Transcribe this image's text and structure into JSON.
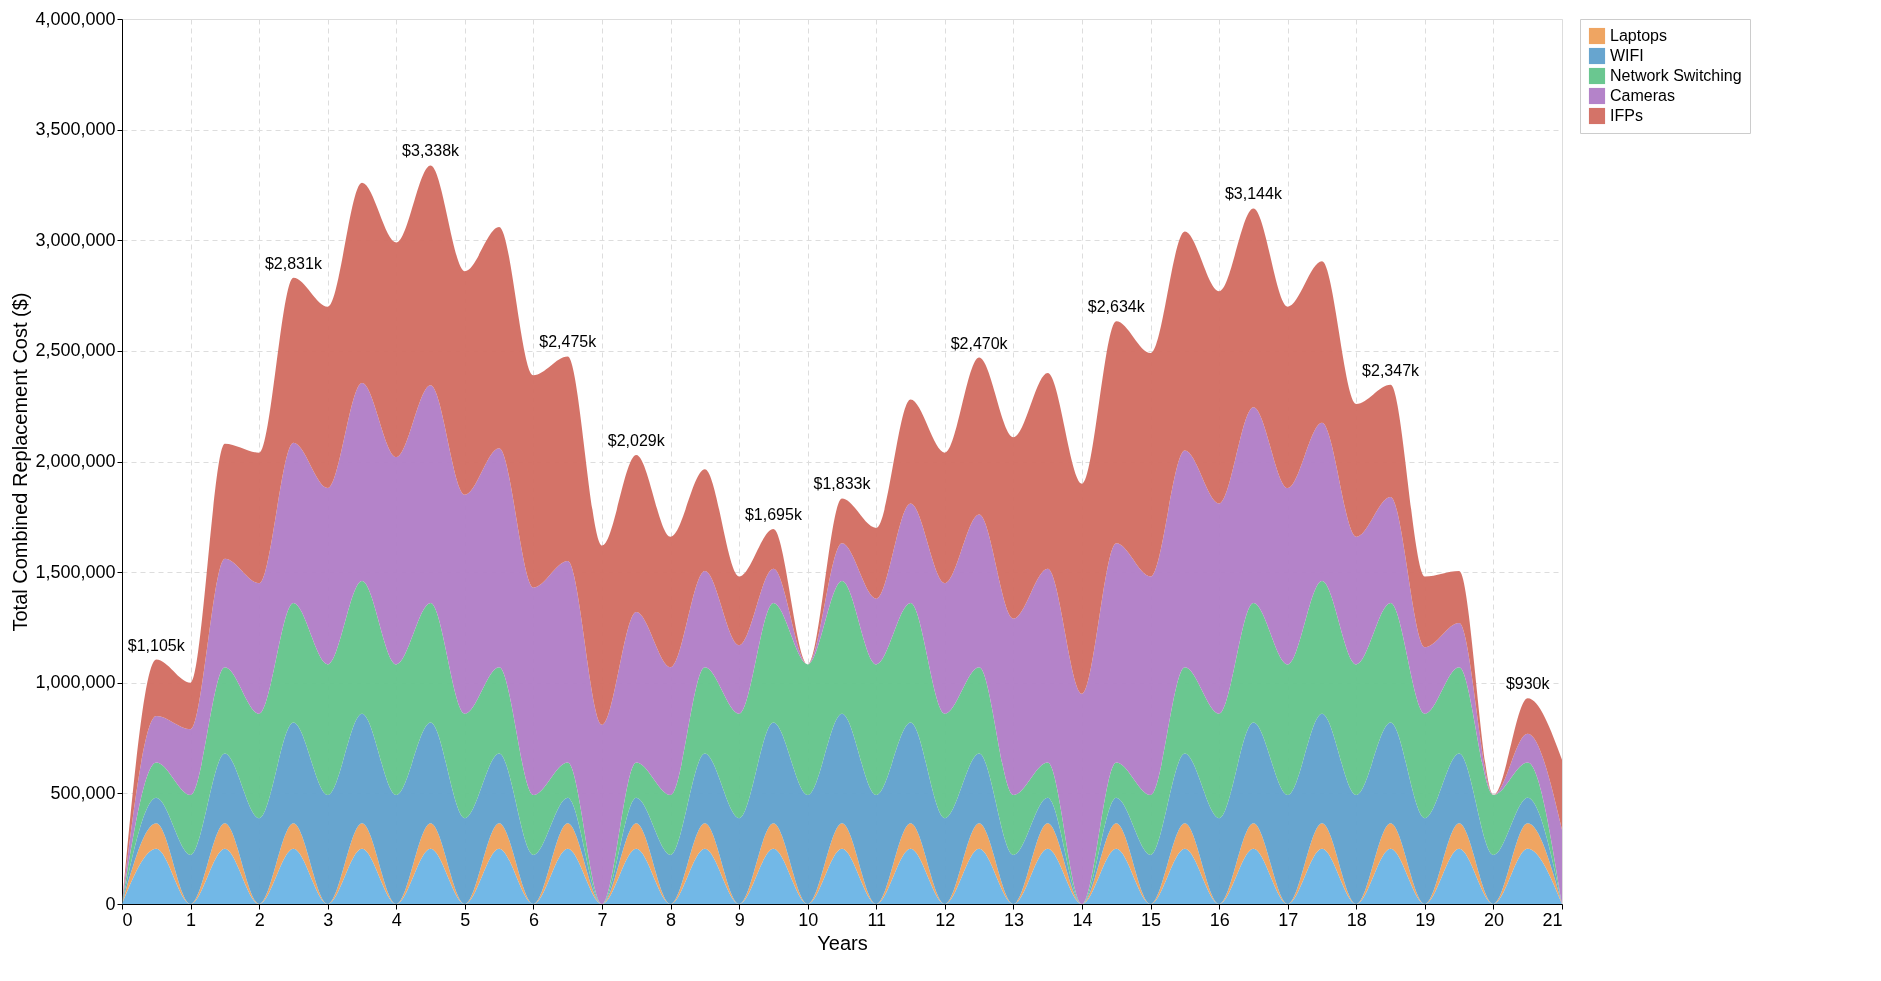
{
  "chart_data": {
    "type": "area",
    "stacked": true,
    "xlabel": "Years",
    "ylabel": "Total Combined Replacement Cost ($)",
    "x": [
      0,
      0.5,
      1,
      1.5,
      2,
      2.5,
      3,
      3.5,
      4,
      4.5,
      5,
      5.5,
      6,
      6.5,
      7,
      7.5,
      8,
      8.5,
      9,
      9.5,
      10,
      10.5,
      11,
      11.5,
      12,
      12.5,
      13,
      13.5,
      14,
      14.5,
      15,
      15.5,
      16,
      16.5,
      17,
      17.5,
      18,
      18.5,
      19,
      19.5,
      20,
      20.5,
      21
    ],
    "series": [
      {
        "color": "#6ab4e6",
        "values": [
          0,
          250000,
          0,
          250000,
          0,
          250000,
          0,
          250000,
          0,
          250000,
          0,
          250000,
          0,
          250000,
          0,
          250000,
          0,
          250000,
          0,
          250000,
          0,
          250000,
          0,
          250000,
          0,
          250000,
          0,
          250000,
          0,
          250000,
          0,
          250000,
          0,
          250000,
          0,
          250000,
          0,
          250000,
          0,
          250000,
          0,
          250000,
          0
        ]
      },
      {
        "name": "Laptops",
        "color": "#eea05a",
        "values": [
          0,
          115000,
          0,
          115000,
          0,
          115000,
          0,
          115000,
          0,
          115000,
          0,
          115000,
          0,
          115000,
          0,
          115000,
          0,
          115000,
          0,
          115000,
          0,
          115000,
          0,
          115000,
          0,
          115000,
          0,
          115000,
          0,
          115000,
          0,
          115000,
          0,
          115000,
          0,
          115000,
          0,
          115000,
          0,
          115000,
          0,
          115000,
          0
        ]
      },
      {
        "name": "WIFI",
        "color": "#5fa0cc",
        "values": [
          0,
          115000,
          222000,
          315000,
          388000,
          455000,
          493000,
          495000,
          493000,
          455000,
          388000,
          315000,
          222000,
          115000,
          0,
          115000,
          222000,
          315000,
          388000,
          455000,
          493000,
          495000,
          493000,
          455000,
          388000,
          315000,
          222000,
          115000,
          0,
          115000,
          222000,
          315000,
          388000,
          455000,
          493000,
          495000,
          493000,
          455000,
          388000,
          315000,
          222000,
          115000,
          0
        ]
      },
      {
        "name": "Network Switching",
        "color": "#62c48a",
        "values": [
          0,
          160000,
          271000,
          390000,
          472000,
          540000,
          590000,
          600000,
          590000,
          540000,
          472000,
          390000,
          271000,
          160000,
          0,
          160000,
          271000,
          390000,
          472000,
          540000,
          590000,
          600000,
          590000,
          540000,
          472000,
          390000,
          271000,
          160000,
          0,
          160000,
          271000,
          390000,
          472000,
          540000,
          590000,
          600000,
          590000,
          540000,
          472000,
          390000,
          271000,
          160000,
          0
        ]
      },
      {
        "name": "Cameras",
        "color": "#b07cc6",
        "values": [
          0,
          210000,
          297000,
          490000,
          590000,
          725000,
          797000,
          895000,
          937000,
          985000,
          990000,
          990000,
          937000,
          910000,
          810000,
          680000,
          577000,
          435000,
          310000,
          155000,
          0,
          170000,
          297000,
          450000,
          590000,
          690000,
          797000,
          875000,
          950000,
          990000,
          987000,
          980000,
          950000,
          885000,
          797000,
          715000,
          577000,
          480000,
          300000,
          200000,
          0,
          130000,
          336000
        ]
      },
      {
        "name": "IFPs",
        "color": "#d26c60",
        "values": [
          0,
          255000,
          210000,
          520000,
          590000,
          746000,
          820000,
          905000,
          970000,
          993000,
          1010000,
          1000000,
          960000,
          925000,
          810000,
          709000,
          590000,
          460000,
          310000,
          180000,
          0,
          203000,
          320000,
          470000,
          590000,
          710000,
          820000,
          885000,
          950000,
          1004000,
          1010000,
          990000,
          960000,
          899000,
          820000,
          730000,
          600000,
          507000,
          320000,
          235000,
          0,
          160000,
          316000
        ]
      }
    ],
    "xlim": [
      0,
      21
    ],
    "xticks": [
      0,
      1,
      2,
      3,
      4,
      5,
      6,
      7,
      8,
      9,
      10,
      11,
      12,
      13,
      14,
      15,
      16,
      17,
      18,
      19,
      20,
      21
    ],
    "ylim": [
      0,
      4000000
    ],
    "yticks": [
      0,
      {
        "value": 500000,
        "label": "500,000"
      },
      {
        "value": 1000000,
        "label": "1,000,000"
      },
      {
        "value": 1500000,
        "label": "1,500,000"
      },
      {
        "value": 2000000,
        "label": "2,000,000"
      },
      {
        "value": 2500000,
        "label": "2,500,000"
      },
      {
        "value": 3000000,
        "label": "3,000,000"
      },
      {
        "value": 3500000,
        "label": "3,500,000"
      },
      {
        "value": 4000000,
        "label": "4,000,000"
      }
    ],
    "grid": true,
    "legend": "top right",
    "annotations": [
      {
        "text": "$1,105k",
        "x": 0.5,
        "y": 1105000
      },
      {
        "text": "$2,831k",
        "x": 2.5,
        "y": 2831000
      },
      {
        "text": "$3,338k",
        "x": 4.5,
        "y": 3338000
      },
      {
        "text": "$2,475k",
        "x": 6.5,
        "y": 2475000
      },
      {
        "text": "$2,029k",
        "x": 7.5,
        "y": 2029000
      },
      {
        "text": "$1,695k",
        "x": 9.5,
        "y": 1695000
      },
      {
        "text": "$1,833k",
        "x": 10.5,
        "y": 1833000
      },
      {
        "text": "$2,470k",
        "x": 12.5,
        "y": 2470000
      },
      {
        "text": "$2,634k",
        "x": 14.5,
        "y": 2634000
      },
      {
        "text": "$3,144k",
        "x": 16.5,
        "y": 3144000
      },
      {
        "text": "$2,347k",
        "x": 18.5,
        "y": 2347000
      },
      {
        "text": "$930k",
        "x": 20.5,
        "y": 930000
      }
    ]
  }
}
